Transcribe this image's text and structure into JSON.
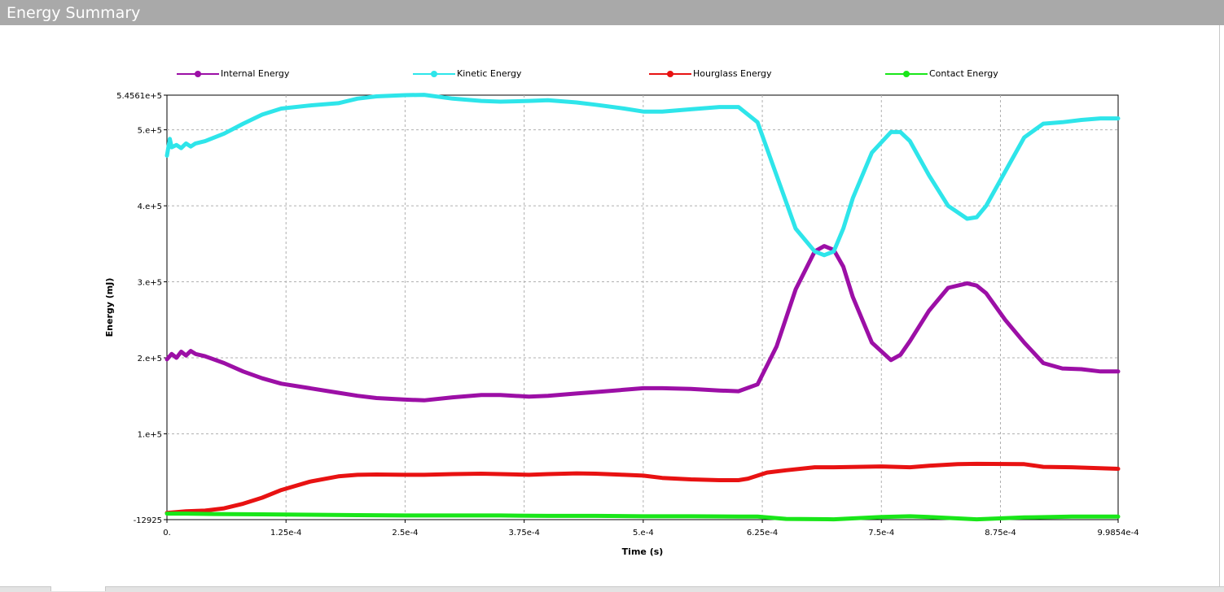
{
  "window": {
    "title": "Energy Summary"
  },
  "colors": {
    "titlebar": "#a9a9a9",
    "internal": "#9c0fa6",
    "kinetic": "#2ee5ea",
    "hourglass": "#e81212",
    "contact": "#19e619",
    "grid": "#b0b0b0"
  },
  "chart_data": {
    "type": "line",
    "title": "",
    "xlabel": "Time (s)",
    "ylabel": "Energy (mJ)",
    "xlim": [
      0,
      0.00099854
    ],
    "ylim": [
      -12925,
      545610
    ],
    "x_ticks": [
      0,
      0.000125,
      0.00025,
      0.000375,
      0.0005,
      0.000625,
      0.00075,
      0.000875,
      0.00099854
    ],
    "x_tick_labels": [
      "0.",
      "1.25e-4",
      "2.5e-4",
      "3.75e-4",
      "5.e-4",
      "6.25e-4",
      "7.5e-4",
      "8.75e-4",
      "9.9854e-4"
    ],
    "y_ticks": [
      -12925,
      100000,
      200000,
      300000,
      400000,
      500000,
      545610
    ],
    "y_tick_labels": [
      "-12925",
      "1.e+5",
      "2.e+5",
      "3.e+5",
      "4.e+5",
      "5.e+5",
      "5.4561e+5"
    ],
    "grid": true,
    "legend_position": "top",
    "series": [
      {
        "name": "Internal Energy",
        "color": "#9c0fa6",
        "x": [
          0,
          5e-06,
          1e-05,
          1.5e-05,
          2e-05,
          2.5e-05,
          3e-05,
          4e-05,
          6e-05,
          8e-05,
          0.0001,
          0.00012,
          0.00015,
          0.00018,
          0.0002,
          0.00022,
          0.00025,
          0.00027,
          0.0003,
          0.00033,
          0.00035,
          0.00038,
          0.0004,
          0.00043,
          0.00045,
          0.00048,
          0.0005,
          0.00052,
          0.00055,
          0.00058,
          0.0006,
          0.00062,
          0.00064,
          0.00066,
          0.00068,
          0.00069,
          0.0007,
          0.00071,
          0.00072,
          0.00074,
          0.00076,
          0.00077,
          0.00078,
          0.0008,
          0.00082,
          0.00084,
          0.00085,
          0.00086,
          0.00088,
          0.0009,
          0.00092,
          0.00094,
          0.00096,
          0.00098,
          0.00099854
        ],
        "y": [
          198000,
          205000,
          200000,
          208000,
          203000,
          209000,
          205000,
          202000,
          193000,
          182000,
          173000,
          166000,
          160000,
          154000,
          150000,
          147000,
          145000,
          144000,
          148000,
          151000,
          151000,
          149000,
          150000,
          153000,
          155000,
          158000,
          160000,
          160000,
          159000,
          157000,
          156000,
          165000,
          215000,
          290000,
          340000,
          347000,
          342000,
          320000,
          280000,
          220000,
          197000,
          204000,
          222000,
          262000,
          292000,
          298000,
          295000,
          285000,
          250000,
          220000,
          193000,
          186000,
          185000,
          182000,
          182000
        ]
      },
      {
        "name": "Kinetic Energy",
        "color": "#2ee5ea",
        "x": [
          0,
          3e-06,
          5e-06,
          1e-05,
          1.5e-05,
          2e-05,
          2.5e-05,
          3e-05,
          4e-05,
          6e-05,
          8e-05,
          0.0001,
          0.00012,
          0.00015,
          0.00018,
          0.0002,
          0.00022,
          0.00025,
          0.00027,
          0.0003,
          0.00033,
          0.00035,
          0.00038,
          0.0004,
          0.00043,
          0.00045,
          0.00048,
          0.0005,
          0.00052,
          0.00055,
          0.00058,
          0.0006,
          0.00062,
          0.00064,
          0.00066,
          0.00068,
          0.00069,
          0.0007,
          0.00071,
          0.00072,
          0.00074,
          0.00076,
          0.00077,
          0.00078,
          0.0008,
          0.00082,
          0.00084,
          0.00085,
          0.00086,
          0.00088,
          0.0009,
          0.00092,
          0.00094,
          0.00096,
          0.00098,
          0.00099854
        ],
        "y": [
          466000,
          488000,
          477000,
          480000,
          476000,
          482000,
          478000,
          482000,
          485000,
          495000,
          508000,
          520000,
          528000,
          532000,
          535000,
          541000,
          544000,
          545600,
          546000,
          541000,
          538000,
          537000,
          538000,
          539000,
          536000,
          533000,
          528000,
          524000,
          524000,
          527000,
          530000,
          530000,
          510000,
          440000,
          370000,
          340000,
          335000,
          340000,
          370000,
          410000,
          470000,
          497000,
          497000,
          485000,
          440000,
          400000,
          383000,
          385000,
          400000,
          445000,
          490000,
          508000,
          510000,
          513000,
          515000,
          515000
        ]
      },
      {
        "name": "Hourglass Energy",
        "color": "#e81212",
        "x": [
          0,
          2e-05,
          4e-05,
          6e-05,
          8e-05,
          0.0001,
          0.00012,
          0.00015,
          0.00018,
          0.0002,
          0.00022,
          0.00025,
          0.00027,
          0.0003,
          0.00033,
          0.00035,
          0.00038,
          0.0004,
          0.00043,
          0.00045,
          0.00048,
          0.0005,
          0.00052,
          0.00055,
          0.00058,
          0.0006,
          0.00061,
          0.00063,
          0.00065,
          0.00068,
          0.0007,
          0.00075,
          0.00078,
          0.0008,
          0.00083,
          0.00085,
          0.0009,
          0.00092,
          0.00095,
          0.00099854
        ],
        "y": [
          -4000,
          -2000,
          -1000,
          2000,
          8000,
          16000,
          26000,
          37000,
          44000,
          46000,
          46500,
          46000,
          46000,
          47000,
          47500,
          47000,
          46000,
          47000,
          48000,
          47500,
          46000,
          45000,
          42000,
          40000,
          39000,
          39000,
          41000,
          49000,
          52000,
          56000,
          56000,
          57000,
          56000,
          58000,
          60000,
          60500,
          60000,
          56500,
          56000,
          54000
        ]
      },
      {
        "name": "Contact Energy",
        "color": "#19e619",
        "x": [
          0,
          2e-05,
          5e-05,
          0.0001,
          0.00015,
          0.0002,
          0.00025,
          0.0003,
          0.00035,
          0.0004,
          0.00045,
          0.0005,
          0.00055,
          0.0006,
          0.00062,
          0.00065,
          0.0007,
          0.00075,
          0.00078,
          0.0008,
          0.00085,
          0.0009,
          0.00095,
          0.00099854
        ],
        "y": [
          -5000,
          -5000,
          -5500,
          -6000,
          -6500,
          -7000,
          -7500,
          -7500,
          -7500,
          -8000,
          -8000,
          -8500,
          -8500,
          -9000,
          -9000,
          -12000,
          -12500,
          -9500,
          -8500,
          -9500,
          -12500,
          -10000,
          -9000,
          -9000
        ]
      }
    ]
  }
}
